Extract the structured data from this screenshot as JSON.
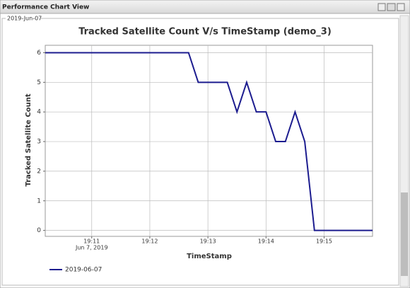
{
  "panel_title": "Performance Chart View",
  "group_label": "2019-Jun-07",
  "chart_data": {
    "type": "line",
    "title": "Tracked Satellite Count V/s TimeStamp (demo_3)",
    "xlabel": "TimeStamp",
    "ylabel": "Tracked Satellite Count",
    "x": [
      "19:10:12",
      "19:12:40",
      "19:12:50",
      "19:13:20",
      "19:13:30",
      "19:13:40",
      "19:13:50",
      "19:14:00",
      "19:14:10",
      "19:14:20",
      "19:14:30",
      "19:14:40",
      "19:14:50",
      "19:15:50"
    ],
    "series": [
      {
        "name": "2019-06-07",
        "color": "#1c1c8f",
        "values": [
          6,
          6,
          5,
          5,
          4,
          5,
          4,
          4,
          3,
          3,
          4,
          3,
          0,
          0
        ]
      }
    ],
    "xlim": [
      "19:10:12",
      "19:15:50"
    ],
    "ylim": [
      -0.2,
      6.25
    ],
    "xticks": [
      {
        "value": "19:11:00",
        "label": "19:11"
      },
      {
        "value": "19:12:00",
        "label": "19:12"
      },
      {
        "value": "19:13:00",
        "label": "19:13"
      },
      {
        "value": "19:14:00",
        "label": "19:14"
      },
      {
        "value": "19:15:00",
        "label": "19:15"
      }
    ],
    "xtick_sublabel": "Jun 7, 2019",
    "yticks": [
      0,
      1,
      2,
      3,
      4,
      5,
      6
    ],
    "grid": true,
    "legend": "bottom-left"
  }
}
